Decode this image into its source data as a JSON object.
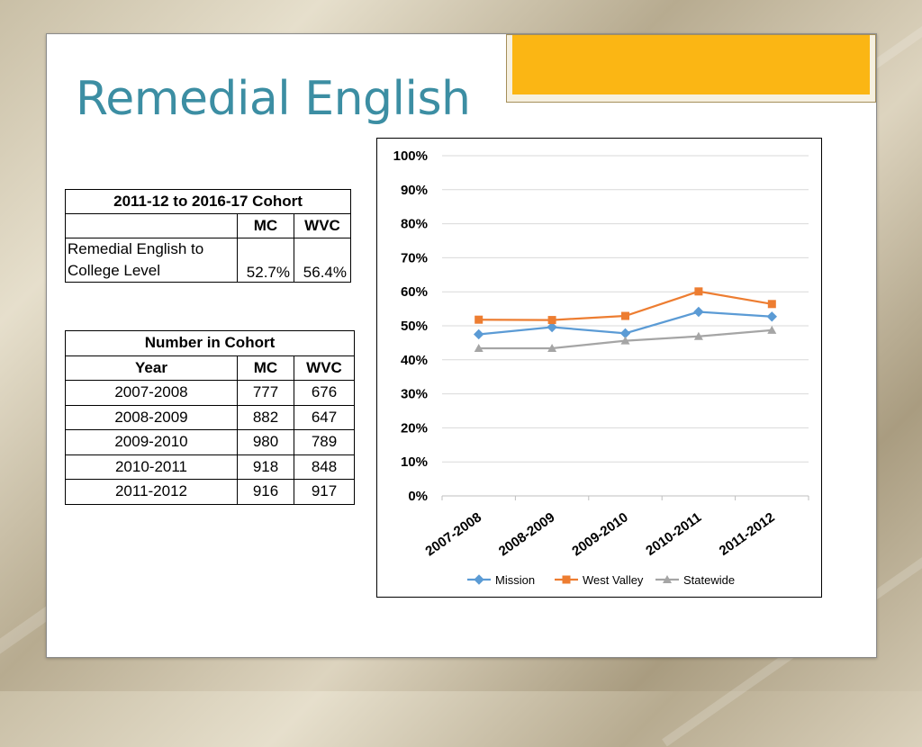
{
  "slide": {
    "title": "Remedial English"
  },
  "cohort_table": {
    "header": "2011-12 to 2016-17 Cohort",
    "col_mc": "MC",
    "col_wvc": "WVC",
    "row_label": "Remedial English to College Level",
    "mc_value": "52.7%",
    "wvc_value": "56.4%"
  },
  "number_table": {
    "header": "Number in Cohort",
    "col_year": "Year",
    "col_mc": "MC",
    "col_wvc": "WVC",
    "rows": [
      {
        "year": "2007-2008",
        "mc": "777",
        "wvc": "676"
      },
      {
        "year": "2008-2009",
        "mc": "882",
        "wvc": "647"
      },
      {
        "year": "2009-2010",
        "mc": "980",
        "wvc": "789"
      },
      {
        "year": "2010-2011",
        "mc": "918",
        "wvc": "848"
      },
      {
        "year": "2011-2012",
        "mc": "916",
        "wvc": "917"
      }
    ]
  },
  "colors": {
    "mission": "#5b9bd5",
    "west_valley": "#ed7d31",
    "statewide": "#a5a5a5",
    "title": "#3c8ea3",
    "accent_tab": "#fbb614"
  },
  "chart_data": {
    "type": "line",
    "title": "",
    "xlabel": "",
    "ylabel": "",
    "categories": [
      "2007-2008",
      "2008-2009",
      "2009-2010",
      "2010-2011",
      "2011-2012"
    ],
    "ylim": [
      0,
      100
    ],
    "y_ticks": [
      "0%",
      "10%",
      "20%",
      "30%",
      "40%",
      "50%",
      "60%",
      "70%",
      "80%",
      "90%",
      "100%"
    ],
    "grid": true,
    "legend_position": "bottom",
    "series": [
      {
        "name": "Mission",
        "marker": "diamond",
        "values": [
          47.5,
          49.6,
          47.8,
          54.1,
          52.7
        ]
      },
      {
        "name": "West Valley",
        "marker": "square",
        "values": [
          51.8,
          51.7,
          52.9,
          60.1,
          56.4
        ]
      },
      {
        "name": "Statewide",
        "marker": "triangle",
        "values": [
          43.4,
          43.4,
          45.6,
          46.9,
          48.7
        ]
      }
    ]
  }
}
